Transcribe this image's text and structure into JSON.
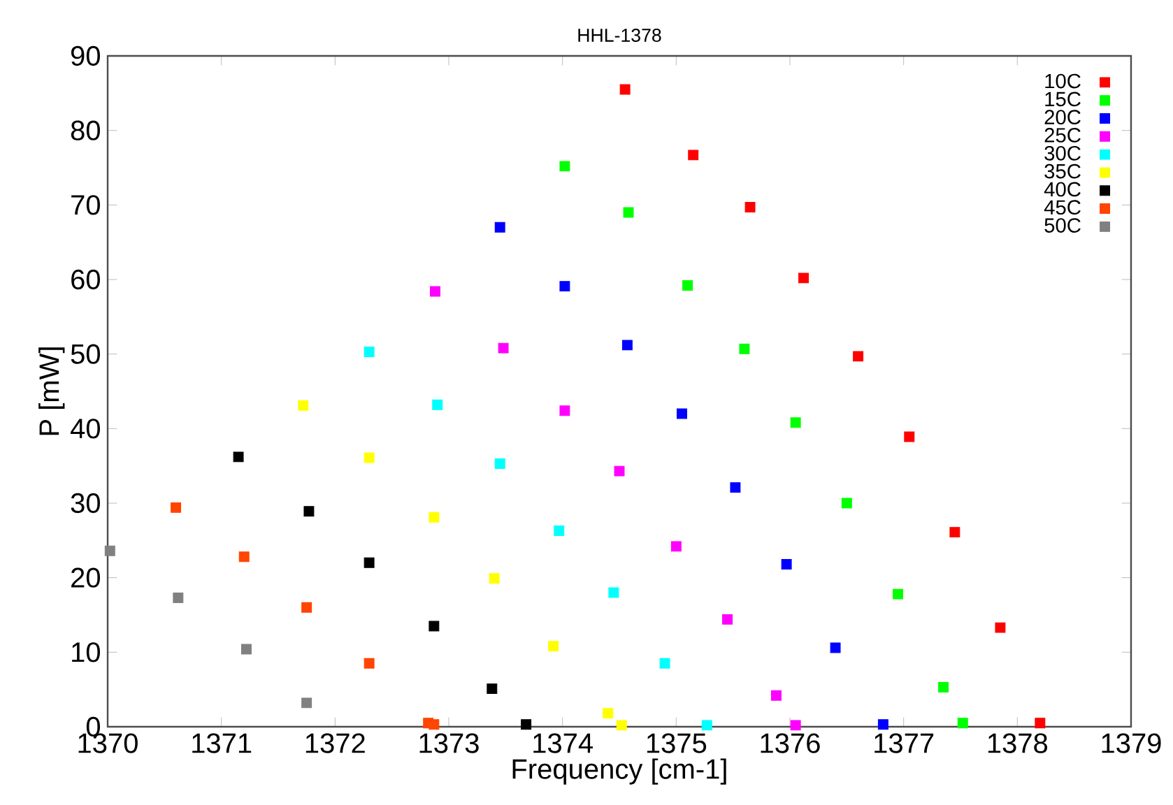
{
  "chart_data": {
    "type": "scatter",
    "title": "HHL-1378",
    "xlabel": "Frequency [cm-1]",
    "ylabel": "P [mW]",
    "xlim": [
      1370,
      1379
    ],
    "xticks": [
      1370,
      1371,
      1372,
      1373,
      1374,
      1375,
      1376,
      1377,
      1378,
      1379
    ],
    "ylim": [
      0,
      90
    ],
    "yticks": [
      0,
      10,
      20,
      30,
      40,
      50,
      60,
      70,
      80,
      90
    ],
    "legend": "top right",
    "marker": "square",
    "grid": false,
    "series": [
      {
        "name": "10C",
        "color": "#ff0000",
        "x": [
          1374.55,
          1375.15,
          1375.65,
          1376.12,
          1376.6,
          1377.05,
          1377.45,
          1377.85,
          1378.2
        ],
        "values": [
          85.5,
          76.7,
          69.7,
          60.2,
          49.7,
          38.9,
          26.1,
          13.3,
          0.5
        ]
      },
      {
        "name": "15C",
        "color": "#00ff00",
        "x": [
          1374.02,
          1374.58,
          1375.1,
          1375.6,
          1376.05,
          1376.5,
          1376.95,
          1377.35,
          1377.52
        ],
        "values": [
          75.2,
          69,
          59.2,
          50.7,
          40.8,
          30,
          17.8,
          5.3,
          0.5
        ]
      },
      {
        "name": "20C",
        "color": "#0000ff",
        "x": [
          1373.45,
          1374.02,
          1374.57,
          1375.05,
          1375.52,
          1375.97,
          1376.4,
          1376.82
        ],
        "values": [
          67,
          59.1,
          51.2,
          42,
          32.1,
          21.8,
          10.6,
          0.3
        ]
      },
      {
        "name": "25C",
        "color": "#ff00ff",
        "x": [
          1372.88,
          1373.48,
          1374.02,
          1374.5,
          1375.0,
          1375.45,
          1375.88,
          1376.05
        ],
        "values": [
          58.4,
          50.8,
          42.4,
          34.3,
          24.2,
          14.4,
          4.2,
          0.2
        ]
      },
      {
        "name": "30C",
        "color": "#00ffff",
        "x": [
          1372.3,
          1372.9,
          1373.45,
          1373.97,
          1374.45,
          1374.9,
          1375.27
        ],
        "values": [
          50.3,
          43.2,
          35.3,
          26.3,
          18,
          8.5,
          0.2
        ]
      },
      {
        "name": "35C",
        "color": "#ffff00",
        "x": [
          1371.72,
          1372.3,
          1372.87,
          1373.4,
          1373.92,
          1374.4,
          1374.52
        ],
        "values": [
          43.1,
          36.1,
          28.1,
          19.9,
          10.8,
          1.8,
          0.2
        ]
      },
      {
        "name": "40C",
        "color": "#000000",
        "x": [
          1371.15,
          1371.77,
          1372.3,
          1372.87,
          1373.38,
          1373.68
        ],
        "values": [
          36.2,
          28.9,
          22,
          13.5,
          5.1,
          0.3
        ]
      },
      {
        "name": "45C",
        "color": "#ff4500",
        "x": [
          1370.6,
          1371.2,
          1371.75,
          1372.3,
          1372.82,
          1372.87
        ],
        "values": [
          29.4,
          22.8,
          16,
          8.5,
          0.5,
          0.3
        ]
      },
      {
        "name": "50C",
        "color": "#808080",
        "x": [
          1370.02,
          1370.62,
          1371.22,
          1371.75
        ],
        "values": [
          23.6,
          17.3,
          10.4,
          3.2
        ]
      }
    ]
  }
}
